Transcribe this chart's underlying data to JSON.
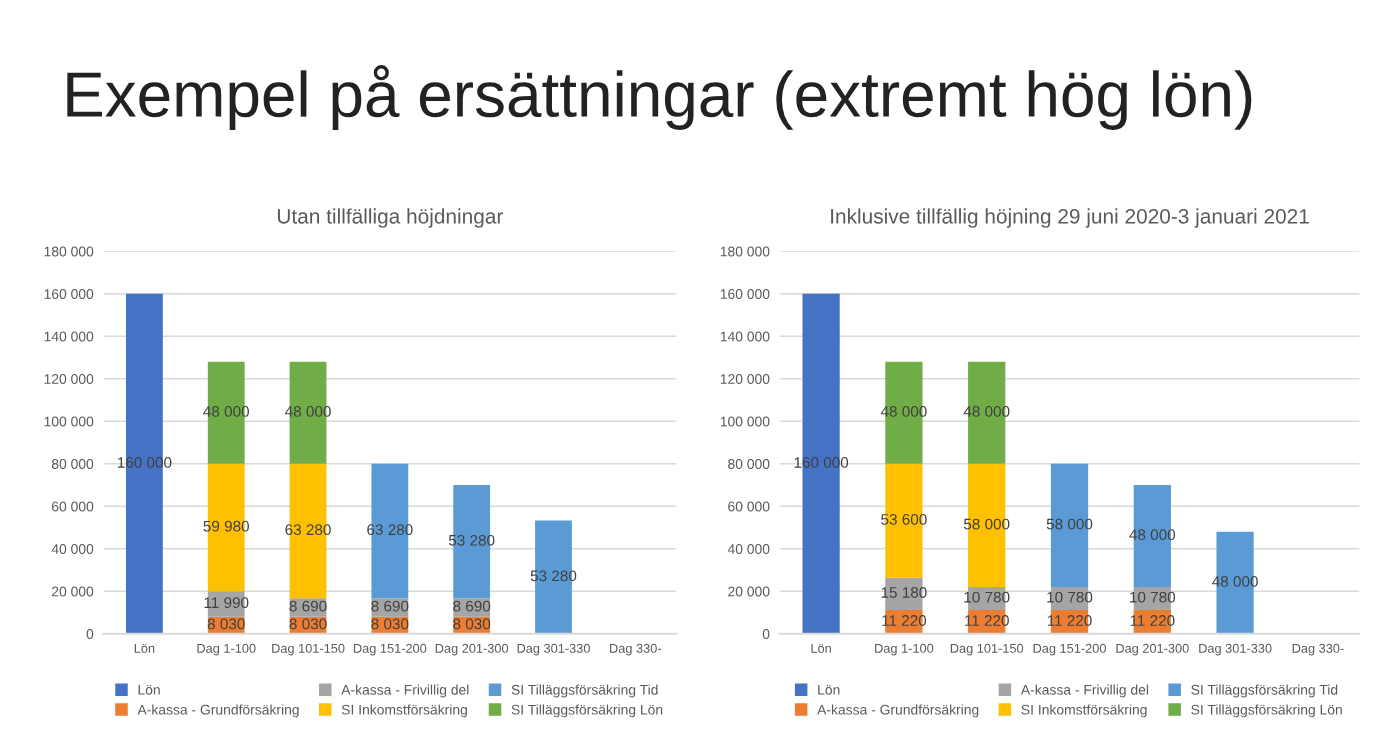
{
  "chart_data": [
    {
      "type": "bar",
      "title": "Utan tillfälliga höjdningar",
      "annotations": [
        "Exempel på ersättningar (extremt hög lön)"
      ],
      "categories": [
        "Lön",
        "Dag 1-100",
        "Dag 101-150",
        "Dag 151-200",
        "Dag 201-300",
        "Dag 301-330",
        "Dag 330-"
      ],
      "stacked": true,
      "grid": "y",
      "legend": "bottom",
      "ylim": [
        0,
        180000
      ],
      "yticks": [
        {
          "value": 0,
          "label": "0"
        },
        {
          "value": 20000,
          "label": "20 000"
        },
        {
          "value": 40000,
          "label": "40 000"
        },
        {
          "value": 60000,
          "label": "60 000"
        },
        {
          "value": 80000,
          "label": "80 000"
        },
        {
          "value": 100000,
          "label": "100 000"
        },
        {
          "value": 120000,
          "label": "120 000"
        },
        {
          "value": 140000,
          "label": "140 000"
        },
        {
          "value": 160000,
          "label": "160 000"
        },
        {
          "value": 180000,
          "label": "180 000"
        }
      ],
      "series": [
        {
          "name": "Lön",
          "color": "#4472c4",
          "values": [
            160000,
            null,
            null,
            null,
            null,
            null,
            null
          ],
          "value_labels": [
            "160 000",
            null,
            null,
            null,
            null,
            null,
            null
          ]
        },
        {
          "name": "A-kassa - Grundförsäkring",
          "color": "#ed7d31",
          "values": [
            null,
            8030,
            8030,
            8030,
            8030,
            null,
            null
          ],
          "value_labels": [
            null,
            "8 030",
            "8 030",
            "8 030",
            "8 030",
            null,
            null
          ]
        },
        {
          "name": "A-kassa - Frivillig del",
          "color": "#a5a5a5",
          "values": [
            null,
            11990,
            8690,
            8690,
            8690,
            null,
            null
          ],
          "value_labels": [
            null,
            "11 990",
            "8 690",
            "8 690",
            "8 690",
            null,
            null
          ]
        },
        {
          "name": "SI Inkomstförsäkring",
          "color": "#ffc000",
          "values": [
            null,
            59980,
            63280,
            null,
            null,
            null,
            null
          ],
          "value_labels": [
            null,
            "59 980",
            "63 280",
            null,
            null,
            null,
            null
          ]
        },
        {
          "name": "SI Tilläggsförsäkring Tid",
          "color": "#5b9bd5",
          "values": [
            null,
            null,
            null,
            63280,
            53280,
            53280,
            null
          ],
          "value_labels": [
            null,
            null,
            null,
            "63 280",
            "53 280",
            "53 280",
            null
          ]
        },
        {
          "name": "SI Tilläggsförsäkring Lön",
          "color": "#70ad47",
          "values": [
            null,
            48000,
            48000,
            null,
            null,
            null,
            null
          ],
          "value_labels": [
            null,
            "48 000",
            "48 000",
            null,
            null,
            null,
            null
          ]
        }
      ]
    },
    {
      "type": "bar",
      "title": "Inklusive tillfällig höjning 29 juni 2020-3 januari 2021",
      "categories": [
        "Lön",
        "Dag 1-100",
        "Dag 101-150",
        "Dag 151-200",
        "Dag 201-300",
        "Dag 301-330",
        "Dag 330-"
      ],
      "stacked": true,
      "grid": "y",
      "legend": "bottom",
      "ylim": [
        0,
        180000
      ],
      "yticks": [
        {
          "value": 0,
          "label": "0"
        },
        {
          "value": 20000,
          "label": "20 000"
        },
        {
          "value": 40000,
          "label": "40 000"
        },
        {
          "value": 60000,
          "label": "60 000"
        },
        {
          "value": 80000,
          "label": "80 000"
        },
        {
          "value": 100000,
          "label": "100 000"
        },
        {
          "value": 120000,
          "label": "120 000"
        },
        {
          "value": 140000,
          "label": "140 000"
        },
        {
          "value": 160000,
          "label": "160 000"
        },
        {
          "value": 180000,
          "label": "180 000"
        }
      ],
      "series": [
        {
          "name": "Lön",
          "color": "#4472c4",
          "values": [
            160000,
            null,
            null,
            null,
            null,
            null,
            null
          ],
          "value_labels": [
            "160 000",
            null,
            null,
            null,
            null,
            null,
            null
          ]
        },
        {
          "name": "A-kassa - Grundförsäkring",
          "color": "#ed7d31",
          "values": [
            null,
            11220,
            11220,
            11220,
            11220,
            null,
            null
          ],
          "value_labels": [
            null,
            "11 220",
            "11 220",
            "11 220",
            "11 220",
            null,
            null
          ]
        },
        {
          "name": "A-kassa - Frivillig del",
          "color": "#a5a5a5",
          "values": [
            null,
            15180,
            10780,
            10780,
            10780,
            null,
            null
          ],
          "value_labels": [
            null,
            "15 180",
            "10 780",
            "10 780",
            "10 780",
            null,
            null
          ]
        },
        {
          "name": "SI Inkomstförsäkring",
          "color": "#ffc000",
          "values": [
            null,
            53600,
            58000,
            null,
            null,
            null,
            null
          ],
          "value_labels": [
            null,
            "53 600",
            "58 000",
            null,
            null,
            null,
            null
          ]
        },
        {
          "name": "SI Tilläggsförsäkring Tid",
          "color": "#5b9bd5",
          "values": [
            null,
            null,
            null,
            58000,
            48000,
            48000,
            null
          ],
          "value_labels": [
            null,
            null,
            null,
            "58 000",
            "48 000",
            "48 000",
            null
          ]
        },
        {
          "name": "SI Tilläggsförsäkring Lön",
          "color": "#70ad47",
          "values": [
            null,
            48000,
            48000,
            null,
            null,
            null,
            null
          ],
          "value_labels": [
            null,
            "48 000",
            "48 000",
            null,
            null,
            null,
            null
          ]
        }
      ]
    }
  ]
}
